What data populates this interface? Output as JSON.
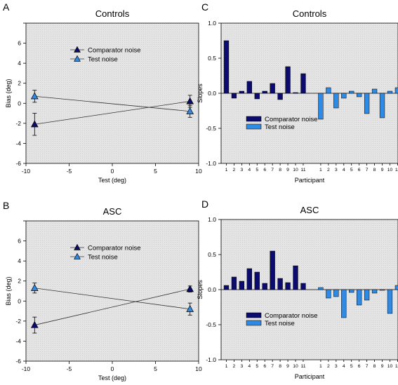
{
  "colors": {
    "comparator": "#0c0c6e",
    "test": "#2f8ae4",
    "background": "#e4e4e4"
  },
  "panels": [
    {
      "letter": "A"
    },
    {
      "letter": "B"
    },
    {
      "letter": "C"
    },
    {
      "letter": "D"
    }
  ],
  "chart_data": [
    {
      "type": "line",
      "title": "Controls",
      "xlabel": "Test (deg)",
      "ylabel": "Bias (deg)",
      "xlim": [
        -10,
        10
      ],
      "ylim": [
        -6,
        8
      ],
      "xticks": [
        -10,
        -5,
        0,
        5,
        10
      ],
      "yticks": [
        -6,
        -4,
        -2,
        0,
        2,
        4,
        6,
        8
      ],
      "ytick_labels": [
        "-6",
        "-4",
        "-2",
        "0",
        "2",
        "4",
        "6",
        ""
      ],
      "series": [
        {
          "name": "Comparator noise",
          "x": [
            -9,
            9
          ],
          "y": [
            -2.1,
            0.2
          ],
          "err": [
            1.1,
            0.6
          ]
        },
        {
          "name": "Test noise",
          "x": [
            -9,
            9
          ],
          "y": [
            0.7,
            -0.8
          ],
          "err": [
            0.6,
            0.6
          ]
        }
      ]
    },
    {
      "type": "bar",
      "title": "Controls",
      "xlabel": "Participant",
      "ylabel": "Slopes",
      "ylim": [
        -1,
        1
      ],
      "yticks": [
        -1.0,
        -0.5,
        0.0,
        0.5,
        1.0
      ],
      "ytick_labels": [
        "-1.0",
        "-0.5",
        "0.0",
        "0.5",
        "1.0"
      ],
      "categories": [
        "1",
        "2",
        "3",
        "4",
        "5",
        "6",
        "7",
        "8",
        "9",
        "10",
        "11"
      ],
      "series": [
        {
          "name": "Comparator noise",
          "values": [
            0.75,
            -0.07,
            0.03,
            0.17,
            -0.08,
            0.03,
            0.14,
            -0.09,
            0.38,
            0.01,
            0.28
          ]
        },
        {
          "name": "Test noise",
          "values": [
            -0.37,
            0.08,
            -0.21,
            -0.07,
            0.03,
            -0.05,
            -0.29,
            0.06,
            -0.35,
            0.03,
            0.08
          ]
        }
      ]
    },
    {
      "type": "line",
      "title": "ASC",
      "xlabel": "Test (deg)",
      "ylabel": "Bias (deg)",
      "xlim": [
        -10,
        10
      ],
      "ylim": [
        -6,
        8
      ],
      "xticks": [
        -10,
        -5,
        0,
        5,
        10
      ],
      "yticks": [
        -6,
        -4,
        -2,
        0,
        2,
        4,
        6,
        8
      ],
      "ytick_labels": [
        "-6",
        "-4",
        "-2",
        "0",
        "2",
        "4",
        "6",
        ""
      ],
      "series": [
        {
          "name": "Comparator noise",
          "x": [
            -9,
            9
          ],
          "y": [
            -2.4,
            1.2
          ],
          "err": [
            0.8,
            0.3
          ]
        },
        {
          "name": "Test noise",
          "x": [
            -9,
            9
          ],
          "y": [
            1.3,
            -0.8
          ],
          "err": [
            0.5,
            0.6
          ]
        }
      ]
    },
    {
      "type": "bar",
      "title": "ASC",
      "xlabel": "Participant",
      "ylabel": "Slopes",
      "ylim": [
        -1,
        1
      ],
      "yticks": [
        -1.0,
        -0.5,
        0.0,
        0.5,
        1.0
      ],
      "ytick_labels": [
        "-1.0",
        "-0.5",
        "0.0",
        "0.5",
        "1.0"
      ],
      "categories": [
        "1",
        "2",
        "3",
        "4",
        "5",
        "6",
        "7",
        "8",
        "9",
        "10",
        "11"
      ],
      "series": [
        {
          "name": "Comparator noise",
          "values": [
            0.06,
            0.18,
            0.12,
            0.3,
            0.25,
            0.09,
            0.55,
            0.16,
            0.1,
            0.34,
            0.09
          ]
        },
        {
          "name": "Test noise",
          "values": [
            0.03,
            -0.12,
            -0.1,
            -0.4,
            -0.04,
            -0.22,
            -0.15,
            -0.05,
            -0.01,
            -0.34,
            0.06
          ]
        }
      ]
    }
  ]
}
